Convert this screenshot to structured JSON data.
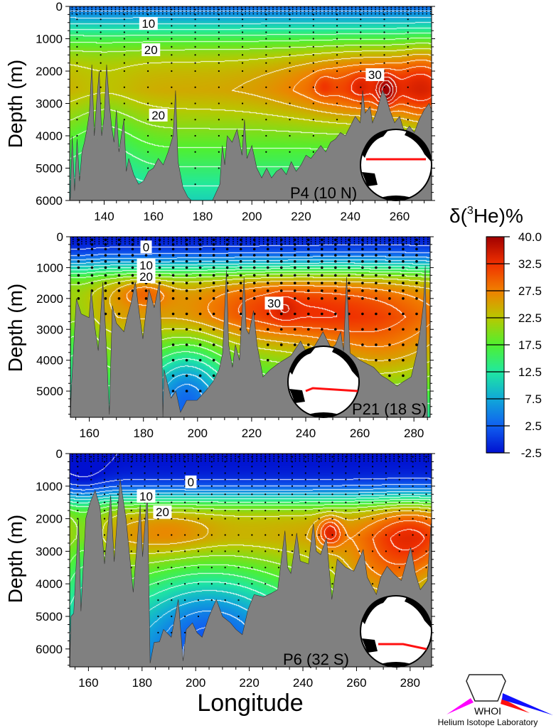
{
  "figure": {
    "y_axis_label": "Depth (m)",
    "x_axis_label": "Longitude"
  },
  "colorbar": {
    "title_prefix": "δ(",
    "title_sup": "3",
    "title_suffix": "He)%",
    "ticks": [
      "40.0",
      "32.5",
      "27.5",
      "22.5",
      "17.5",
      "12.5",
      "7.5",
      "2.5",
      "-2.5"
    ],
    "stops": [
      -2.5,
      2.5,
      7.5,
      12.5,
      17.5,
      22.5,
      27.5,
      32.5,
      40.0
    ],
    "colors": [
      "#0010d0",
      "#1060f0",
      "#10a8d8",
      "#20e8a0",
      "#50f030",
      "#b8c800",
      "#f08000",
      "#f03000",
      "#a00000"
    ]
  },
  "logo": {
    "name": "WHOI",
    "subtitle": "Helium Isotope Laboratory"
  },
  "chart_data": [
    {
      "type": "heatmap",
      "section": "P4 (10 N)",
      "xlabel": "",
      "ylabel": "Depth (m)",
      "xlim": [
        126,
        273
      ],
      "ylim": [
        6000,
        0
      ],
      "x_ticks": [
        140,
        160,
        180,
        200,
        220,
        240,
        260
      ],
      "y_ticks": [
        0,
        1000,
        2000,
        3000,
        4000,
        5000,
        6000
      ],
      "contour_labels": [
        {
          "text": "10",
          "lon": 158,
          "depth": 530
        },
        {
          "text": "20",
          "lon": 159,
          "depth": 1340
        },
        {
          "text": "30",
          "lon": 250,
          "depth": 2110
        },
        {
          "text": "20",
          "lon": 162,
          "depth": 3360
        }
      ],
      "seafloor": [
        [
          126.3,
          5900
        ],
        [
          127,
          4000
        ],
        [
          128,
          5700
        ],
        [
          129,
          4100
        ],
        [
          130,
          5400
        ],
        [
          131,
          4500
        ],
        [
          132,
          4200
        ],
        [
          133,
          3800
        ],
        [
          134,
          3300
        ],
        [
          135,
          1800
        ],
        [
          136,
          4000
        ],
        [
          137,
          2900
        ],
        [
          138,
          2000
        ],
        [
          139,
          4000
        ],
        [
          140,
          3400
        ],
        [
          141,
          1800
        ],
        [
          142,
          2900
        ],
        [
          143,
          3700
        ],
        [
          144,
          4200
        ],
        [
          145,
          3200
        ],
        [
          146,
          4500
        ],
        [
          147,
          4000
        ],
        [
          148,
          3500
        ],
        [
          149,
          5100
        ],
        [
          150,
          4700
        ],
        [
          152,
          5200
        ],
        [
          154,
          5500
        ],
        [
          156,
          5400
        ],
        [
          158,
          5100
        ],
        [
          160,
          5000
        ],
        [
          162,
          4700
        ],
        [
          164,
          4900
        ],
        [
          166,
          4500
        ],
        [
          168,
          4000
        ],
        [
          169,
          2600
        ],
        [
          170,
          4800
        ],
        [
          172,
          5600
        ],
        [
          174,
          5900
        ],
        [
          175.5,
          6000
        ],
        [
          180,
          6000
        ],
        [
          184,
          6000
        ],
        [
          187,
          5500
        ],
        [
          188,
          4300
        ],
        [
          189,
          4900
        ],
        [
          190,
          4000
        ],
        [
          192,
          4200
        ],
        [
          194,
          3800
        ],
        [
          196,
          4600
        ],
        [
          197,
          3500
        ],
        [
          198,
          4700
        ],
        [
          200,
          4300
        ],
        [
          202,
          5000
        ],
        [
          204,
          5300
        ],
        [
          206,
          5000
        ],
        [
          208,
          5300
        ],
        [
          210,
          5100
        ],
        [
          212,
          5000
        ],
        [
          214,
          5200
        ],
        [
          216,
          4800
        ],
        [
          218,
          5100
        ],
        [
          220,
          4900
        ],
        [
          222,
          4600
        ],
        [
          224,
          4700
        ],
        [
          226,
          4500
        ],
        [
          228,
          4300
        ],
        [
          230,
          4500
        ],
        [
          232,
          4200
        ],
        [
          234,
          4100
        ],
        [
          236,
          3900
        ],
        [
          238,
          4000
        ],
        [
          240,
          3700
        ],
        [
          242,
          3400
        ],
        [
          244,
          3600
        ],
        [
          245,
          2600
        ],
        [
          246,
          3300
        ],
        [
          248,
          3100
        ],
        [
          249,
          3600
        ],
        [
          251,
          3200
        ],
        [
          253,
          2600
        ],
        [
          254.5,
          2800
        ],
        [
          256,
          3200
        ],
        [
          258,
          3600
        ],
        [
          260,
          3400
        ],
        [
          262,
          3900
        ],
        [
          264,
          3700
        ],
        [
          266,
          3900
        ],
        [
          268,
          3500
        ],
        [
          270,
          3200
        ],
        [
          272,
          3000
        ],
        [
          273,
          3200
        ]
      ]
    },
    {
      "type": "heatmap",
      "section": "P21 (18 S)",
      "xlabel": "",
      "ylabel": "Depth (m)",
      "xlim": [
        153,
        286
      ],
      "ylim": [
        5850,
        0
      ],
      "x_ticks": [
        160,
        180,
        200,
        220,
        240,
        260,
        280
      ],
      "y_ticks": [
        0,
        1000,
        2000,
        3000,
        4000,
        5000
      ],
      "contour_labels": [
        {
          "text": "0",
          "lon": 181,
          "depth": 330
        },
        {
          "text": "10",
          "lon": 181,
          "depth": 920
        },
        {
          "text": "20",
          "lon": 181,
          "depth": 1290
        },
        {
          "text": "30",
          "lon": 228.3,
          "depth": 2150
        }
      ],
      "seafloor": [
        [
          153,
          5850
        ],
        [
          153.4,
          4840
        ],
        [
          155.2,
          2000
        ],
        [
          157,
          2500
        ],
        [
          159.9,
          2620
        ],
        [
          160.7,
          1700
        ],
        [
          162,
          2900
        ],
        [
          163.3,
          3690
        ],
        [
          165,
          1470
        ],
        [
          166,
          3000
        ],
        [
          167.4,
          5760
        ],
        [
          168.5,
          2230
        ],
        [
          170,
          2800
        ],
        [
          172.8,
          3080
        ],
        [
          174,
          2600
        ],
        [
          175.4,
          2160
        ],
        [
          177,
          1470
        ],
        [
          178.5,
          2500
        ],
        [
          179.8,
          3310
        ],
        [
          181,
          2400
        ],
        [
          182,
          1700
        ],
        [
          184,
          2300
        ],
        [
          185.9,
          1470
        ],
        [
          186.8,
          3500
        ],
        [
          187.2,
          5850
        ],
        [
          187.6,
          4300
        ],
        [
          190.2,
          5230
        ],
        [
          192,
          5000
        ],
        [
          193.7,
          5690
        ],
        [
          196,
          5300
        ],
        [
          199.8,
          5300
        ],
        [
          203,
          5000
        ],
        [
          205.8,
          4690
        ],
        [
          208,
          4300
        ],
        [
          209.3,
          3770
        ],
        [
          210.7,
          1080
        ],
        [
          211.5,
          3500
        ],
        [
          212.9,
          4230
        ],
        [
          214,
          3500
        ],
        [
          215.5,
          4000
        ],
        [
          217.2,
          1310
        ],
        [
          218,
          3000
        ],
        [
          219,
          3150
        ],
        [
          220.7,
          2390
        ],
        [
          222,
          3500
        ],
        [
          224.2,
          4540
        ],
        [
          227,
          4300
        ],
        [
          230.3,
          4080
        ],
        [
          234.6,
          3850
        ],
        [
          238.1,
          3380
        ],
        [
          240,
          3700
        ],
        [
          243.3,
          3540
        ],
        [
          246.4,
          3080
        ],
        [
          249.4,
          3620
        ],
        [
          251,
          3500
        ],
        [
          252.9,
          3080
        ],
        [
          254,
          3700
        ],
        [
          255.1,
          1310
        ],
        [
          256.4,
          3770
        ],
        [
          260,
          4000
        ],
        [
          265.1,
          4230
        ],
        [
          268,
          4500
        ],
        [
          270,
          4600
        ],
        [
          273.8,
          4840
        ],
        [
          276,
          4700
        ],
        [
          279,
          4540
        ],
        [
          281,
          3800
        ],
        [
          282.5,
          2930
        ],
        [
          283.5,
          2200
        ],
        [
          284.2,
          930
        ],
        [
          285,
          5850
        ],
        [
          286,
          5850
        ]
      ]
    },
    {
      "type": "heatmap",
      "section": "P6 (32 S)",
      "xlabel": "Longitude",
      "ylabel": "Depth (m)",
      "xlim": [
        153,
        288
      ],
      "ylim": [
        6550,
        0
      ],
      "x_ticks": [
        160,
        180,
        200,
        220,
        240,
        260,
        280
      ],
      "y_ticks": [
        0,
        1000,
        2000,
        3000,
        4000,
        5000,
        6000
      ],
      "contour_labels": [
        {
          "text": "0",
          "lon": 198.2,
          "depth": 870
        },
        {
          "text": "10",
          "lon": 181.5,
          "depth": 1310
        },
        {
          "text": "20",
          "lon": 187.6,
          "depth": 1790
        }
      ],
      "seafloor": [
        [
          153,
          6550
        ],
        [
          153.5,
          5000
        ],
        [
          154.5,
          4910
        ],
        [
          156.3,
          2000
        ],
        [
          157.2,
          4840
        ],
        [
          159,
          2000
        ],
        [
          160.7,
          1490
        ],
        [
          162.5,
          1130
        ],
        [
          164.3,
          1640
        ],
        [
          166,
          3390
        ],
        [
          168.3,
          1280
        ],
        [
          169.6,
          3320
        ],
        [
          171.8,
          770
        ],
        [
          174,
          2000
        ],
        [
          176.7,
          4260
        ],
        [
          179.3,
          1570
        ],
        [
          180.2,
          3170
        ],
        [
          182,
          1130
        ],
        [
          183,
          6440
        ],
        [
          184.5,
          5800
        ],
        [
          186.5,
          5780
        ],
        [
          188,
          5400
        ],
        [
          190.9,
          5640
        ],
        [
          193.5,
          4480
        ],
        [
          195.3,
          6370
        ],
        [
          196.5,
          5400
        ],
        [
          198.8,
          5200
        ],
        [
          200.5,
          5500
        ],
        [
          202.4,
          5640
        ],
        [
          205,
          5000
        ],
        [
          207.7,
          4480
        ],
        [
          210,
          5000
        ],
        [
          213,
          5200
        ],
        [
          215,
          5400
        ],
        [
          217.4,
          5560
        ],
        [
          219.5,
          4800
        ],
        [
          221.8,
          4330
        ],
        [
          225.3,
          4400
        ],
        [
          228,
          4300
        ],
        [
          230.6,
          4180
        ],
        [
          233.3,
          2370
        ],
        [
          234.3,
          3500
        ],
        [
          235.5,
          3680
        ],
        [
          237.7,
          2440
        ],
        [
          239,
          3300
        ],
        [
          242.1,
          3390
        ],
        [
          243.9,
          2150
        ],
        [
          245,
          3000
        ],
        [
          246.6,
          3100
        ],
        [
          248.8,
          2590
        ],
        [
          250.8,
          4480
        ],
        [
          252.8,
          3240
        ],
        [
          256,
          3500
        ],
        [
          259,
          3610
        ],
        [
          262.5,
          2950
        ],
        [
          264,
          3800
        ],
        [
          267.4,
          4330
        ],
        [
          269,
          3800
        ],
        [
          271.4,
          3460
        ],
        [
          274,
          3700
        ],
        [
          276.7,
          3900
        ],
        [
          280.2,
          2880
        ],
        [
          282,
          3700
        ],
        [
          283.8,
          4180
        ],
        [
          286.4,
          3900
        ],
        [
          287.8,
          2150
        ],
        [
          288,
          6550
        ]
      ]
    }
  ]
}
